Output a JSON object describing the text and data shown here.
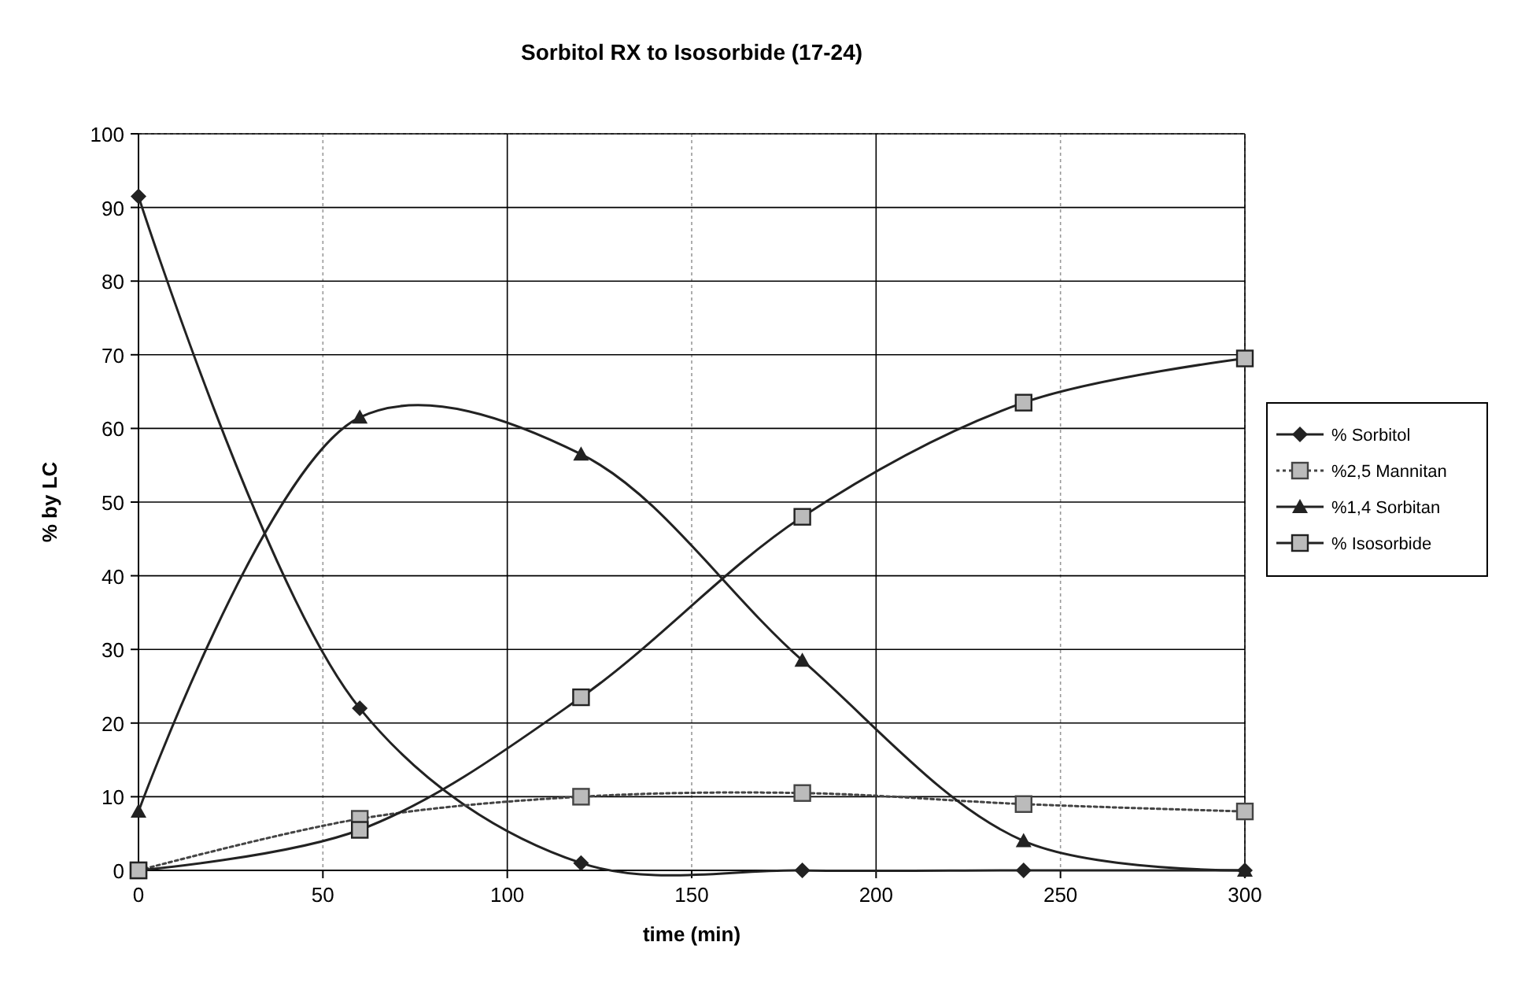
{
  "chart_data": {
    "type": "line",
    "title": "Sorbitol RX to Isosorbide (17-24)",
    "xlabel": "time (min)",
    "ylabel": "% by LC",
    "x": [
      0,
      60,
      120,
      180,
      240,
      300
    ],
    "xlim": [
      0,
      300
    ],
    "xticks": [
      0,
      50,
      100,
      150,
      200,
      250,
      300
    ],
    "ylim": [
      0,
      100
    ],
    "yticks": [
      0,
      10,
      20,
      30,
      40,
      50,
      60,
      70,
      80,
      90,
      100
    ],
    "grid": true,
    "legend": "right",
    "series": [
      {
        "name": "% Sorbitol",
        "color": "#222222",
        "marker": "diamond",
        "line_style": "solid",
        "values": [
          91.5,
          22,
          1,
          0,
          0,
          0
        ]
      },
      {
        "name": "%2,5 Mannitan",
        "color": "#444444",
        "marker": "square",
        "line_style": "dotted",
        "values": [
          0,
          7,
          10,
          10.5,
          9,
          8
        ]
      },
      {
        "name": "%1,4 Sorbitan",
        "color": "#222222",
        "marker": "triangle",
        "line_style": "solid",
        "values": [
          8,
          61.5,
          56.5,
          28.5,
          4,
          0
        ]
      },
      {
        "name": "% Isosorbide",
        "color": "#222222",
        "marker": "square",
        "line_style": "solid",
        "values": [
          0,
          5.5,
          23.5,
          48,
          63.5,
          69.5
        ]
      }
    ]
  }
}
